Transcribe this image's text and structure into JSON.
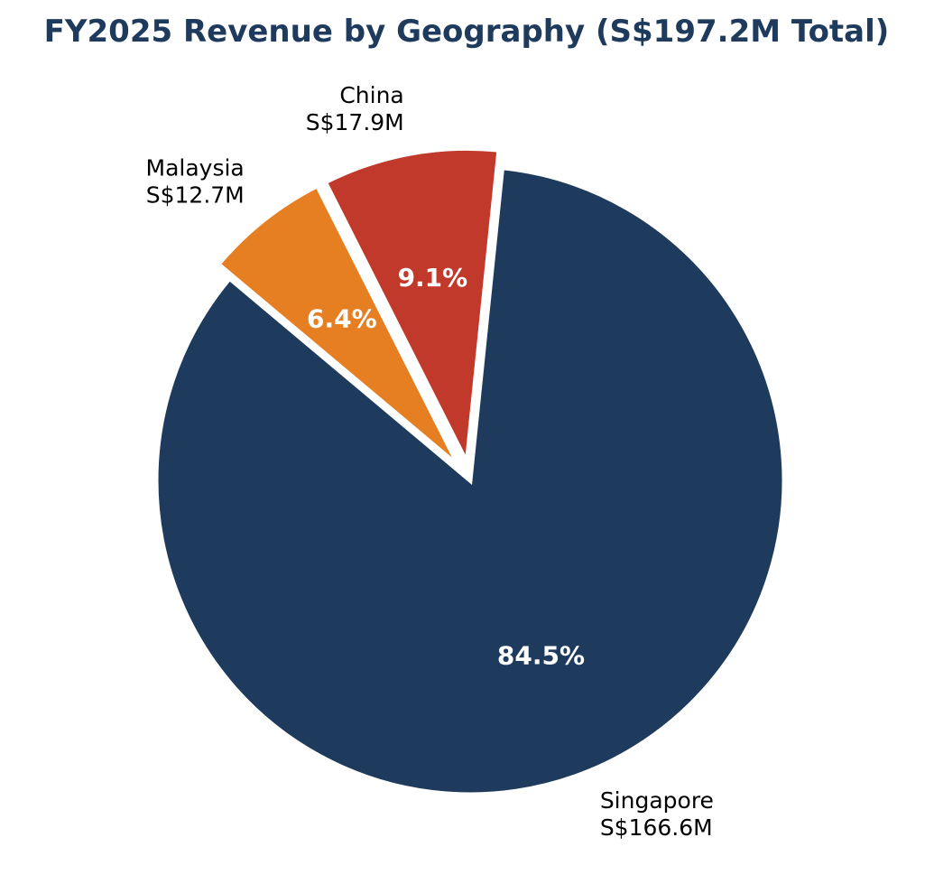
{
  "chart_data": {
    "type": "pie",
    "title": "FY2025 Revenue by Geography (S$197.2M Total)",
    "title_color": "#1e3a5c",
    "slices": [
      {
        "name": "Singapore",
        "value_text": "S$166.6M",
        "value": 166.6,
        "percent": 84.5,
        "percent_label": "84.5%",
        "color": "#1e3a5c"
      },
      {
        "name": "China",
        "value_text": "S$17.9M",
        "value": 17.9,
        "percent": 9.1,
        "percent_label": "9.1%",
        "color": "#c0392b"
      },
      {
        "name": "Malaysia",
        "value_text": "S$12.7M",
        "value": 12.7,
        "percent": 6.4,
        "percent_label": "6.4%",
        "color": "#e67e22"
      }
    ],
    "legend": "none"
  }
}
